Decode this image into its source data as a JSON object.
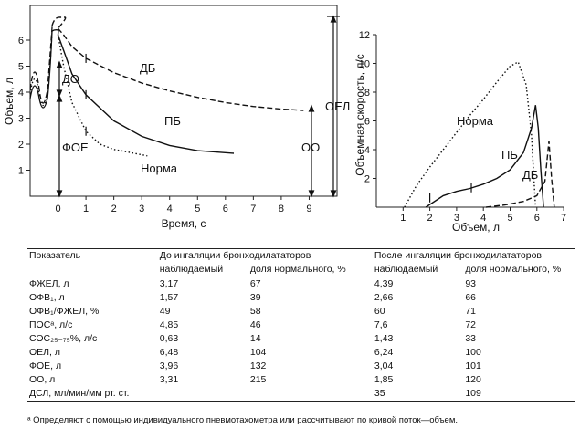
{
  "chart_data": [
    {
      "type": "line",
      "xlabel": "Время, с",
      "ylabel": "Объем, л",
      "xlim": [
        -1,
        10
      ],
      "ylim": [
        0,
        7
      ],
      "x_ticks": [
        "0",
        "1",
        "2",
        "3",
        "4",
        "5",
        "6",
        "7",
        "8",
        "9"
      ],
      "y_ticks": [
        "1",
        "2",
        "3",
        "4",
        "5",
        "6"
      ],
      "series": [
        {
          "name": "ДБ",
          "style": "dashed",
          "x": [
            0,
            0.2,
            0.5,
            1,
            2,
            3,
            4,
            5,
            6,
            7,
            8,
            8.8
          ],
          "y": [
            6.45,
            6.2,
            5.75,
            5.3,
            4.75,
            4.35,
            4.05,
            3.8,
            3.6,
            3.45,
            3.35,
            3.3
          ]
        },
        {
          "name": "ПБ",
          "style": "solid",
          "x": [
            0,
            0.2,
            0.5,
            1,
            2,
            3,
            4,
            5,
            6.3
          ],
          "y": [
            6.2,
            5.6,
            4.7,
            3.9,
            2.9,
            2.3,
            1.95,
            1.75,
            1.65
          ]
        },
        {
          "name": "Норма",
          "style": "dotted",
          "x": [
            0,
            0.2,
            0.5,
            1,
            1.5,
            2,
            2.5,
            3.2
          ],
          "y": [
            6.2,
            5.0,
            3.6,
            2.5,
            2.0,
            1.8,
            1.7,
            1.55
          ]
        }
      ],
      "annotations": [
        "ДО",
        "ФОЕ",
        "ОО",
        "ОЕЛ"
      ]
    },
    {
      "type": "line",
      "xlabel": "Объем, л",
      "ylabel": "Объемная скорость, л/с",
      "xlim": [
        0,
        7
      ],
      "ylim": [
        0,
        12
      ],
      "x_ticks": [
        "1",
        "2",
        "3",
        "4",
        "5",
        "6",
        "7"
      ],
      "y_ticks": [
        "2",
        "4",
        "6",
        "8",
        "10",
        "12"
      ],
      "series": [
        {
          "name": "Норма",
          "style": "dotted",
          "x": [
            1.05,
            1.5,
            2,
            2.5,
            3,
            3.5,
            4,
            4.5,
            5,
            5.3,
            5.6,
            5.8,
            5.95
          ],
          "y": [
            0,
            1.5,
            2.8,
            4.0,
            5.2,
            6.4,
            7.5,
            8.7,
            9.8,
            10.1,
            8.5,
            5.0,
            0
          ]
        },
        {
          "name": "ПБ",
          "style": "solid",
          "x": [
            1.85,
            2.5,
            3,
            3.5,
            4,
            4.5,
            5,
            5.5,
            5.8,
            5.95,
            6.05,
            6.15,
            6.25
          ],
          "y": [
            0,
            0.8,
            1.1,
            1.3,
            1.6,
            2.0,
            2.6,
            3.8,
            5.5,
            7.1,
            5.5,
            2.5,
            0
          ]
        },
        {
          "name": "ДБ",
          "style": "dashed",
          "x": [
            4.1,
            4.8,
            5.5,
            6.0,
            6.3,
            6.45,
            6.55,
            6.65
          ],
          "y": [
            0,
            0.15,
            0.4,
            0.8,
            1.8,
            4.6,
            2.0,
            0
          ]
        }
      ]
    }
  ],
  "table": {
    "col_param": "Показатель",
    "group_before": "До ингаляции бронходилататоров",
    "group_after": "После ингаляции бронходилататоров",
    "sub_observed": "наблюдаемый",
    "sub_percent": "доля нормального, %",
    "rows": [
      {
        "name": "ФЖЕЛ, л",
        "b_obs": "3,17",
        "b_pct": "67",
        "a_obs": "4,39",
        "a_pct": "93"
      },
      {
        "name": "ОФВ₁, л",
        "b_obs": "1,57",
        "b_pct": "39",
        "a_obs": "2,66",
        "a_pct": "66"
      },
      {
        "name": "ОФВ₁/ФЖЕЛ, %",
        "b_obs": "49",
        "b_pct": "58",
        "a_obs": "60",
        "a_pct": "71"
      },
      {
        "name": "ПОСᵃ, л/с",
        "b_obs": "4,85",
        "b_pct": "46",
        "a_obs": "7,6",
        "a_pct": "72"
      },
      {
        "name": "СОС₂₅₋₇₅%, л/с",
        "b_obs": "0,63",
        "b_pct": "14",
        "a_obs": "1,43",
        "a_pct": "33"
      },
      {
        "name": "ОЕЛ, л",
        "b_obs": "6,48",
        "b_pct": "104",
        "a_obs": "6,24",
        "a_pct": "100"
      },
      {
        "name": "ФОЕ, л",
        "b_obs": "3,96",
        "b_pct": "132",
        "a_obs": "3,04",
        "a_pct": "101"
      },
      {
        "name": "ОО, л",
        "b_obs": "3,31",
        "b_pct": "215",
        "a_obs": "1,85",
        "a_pct": "120"
      },
      {
        "name": "ДСЛ, мл/мин/мм рт. ст.",
        "b_obs": "",
        "b_pct": "",
        "a_obs": "35",
        "a_pct": "109"
      }
    ]
  },
  "footnote": "ᵃ Определяют с помощью индивидуального пневмотахометра или рассчитывают по кривой поток—объем."
}
